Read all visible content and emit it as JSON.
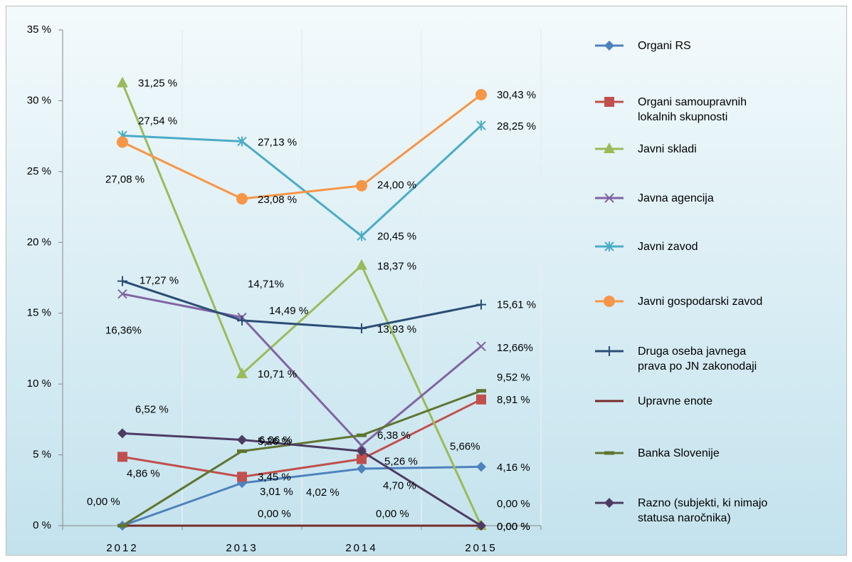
{
  "chart_data": {
    "type": "line",
    "categories": [
      "2012",
      "2013",
      "2014",
      "2015"
    ],
    "ylim": [
      0,
      35
    ],
    "yticks": [
      {
        "value": 0,
        "label": "0 %"
      },
      {
        "value": 5,
        "label": "5 %"
      },
      {
        "value": 10,
        "label": "10 %"
      },
      {
        "value": 15,
        "label": "15 %"
      },
      {
        "value": 20,
        "label": "20 %"
      },
      {
        "value": 25,
        "label": "25 %"
      },
      {
        "value": 30,
        "label": "30 %"
      },
      {
        "value": 35,
        "label": "35 %"
      }
    ],
    "grid": true,
    "legend": "right",
    "series": [
      {
        "name": "Organi RS",
        "color": "#4f81bd",
        "marker": "diamond",
        "values": [
          0,
          3.01,
          4.02,
          4.16
        ],
        "value_labels": [
          "0,00 %",
          "3,01 %",
          "4,02 %",
          "4,16 %"
        ]
      },
      {
        "name": "Organi samoupravnih lokalnih skupnosti",
        "color": "#c0504d",
        "marker": "square",
        "values": [
          4.86,
          3.45,
          4.7,
          8.91
        ],
        "value_labels": [
          "4,86 %",
          "3,45 %",
          "4,70 %",
          "8,91 %"
        ]
      },
      {
        "name": "Javni skladi",
        "color": "#9bbb59",
        "marker": "triangle",
        "values": [
          31.25,
          10.71,
          18.37,
          0
        ],
        "value_labels": [
          "31,25 %",
          "10,71 %",
          "18,37 %",
          "0,00 %"
        ]
      },
      {
        "name": "Javna agencija",
        "color": "#8064a2",
        "marker": "x",
        "values": [
          16.36,
          14.71,
          5.66,
          12.66
        ],
        "value_labels": [
          "16,36%",
          "14,71%",
          "5,66%",
          "12,66%"
        ]
      },
      {
        "name": "Javni zavod",
        "color": "#4bacc6",
        "marker": "star",
        "values": [
          27.54,
          27.13,
          20.45,
          28.25
        ],
        "value_labels": [
          "27,54 %",
          "27,13 %",
          "20,45 %",
          "28,25 %"
        ]
      },
      {
        "name": "Javni gospodarski zavod",
        "color": "#f79646",
        "marker": "circle",
        "values": [
          27.08,
          23.08,
          24.0,
          30.43
        ],
        "value_labels": [
          "27,08 %",
          "23,08 %",
          "24,00 %",
          "30,43 %"
        ]
      },
      {
        "name": "Druga oseba javnega prava po JN zakonodaji",
        "color": "#2c4d75",
        "marker": "plus",
        "values": [
          17.27,
          14.49,
          13.93,
          15.61
        ],
        "value_labels": [
          "17,27 %",
          "14,49 %",
          "13,93 %",
          "15,61 %"
        ]
      },
      {
        "name": "Upravne enote",
        "color": "#772c2a",
        "marker": "none",
        "values": [
          0,
          0,
          0,
          0
        ],
        "value_labels": [
          null,
          "0,00 %",
          "0,00 %",
          "0,00 %"
        ]
      },
      {
        "name": "Banka Slovenije",
        "color": "#5f7530",
        "marker": "dash",
        "values": [
          0,
          5.26,
          6.38,
          9.52
        ],
        "value_labels": [
          null,
          "5,26 %",
          "6,38 %",
          "9,52 %"
        ]
      },
      {
        "name": "Razno (subjekti, ki nimajo statusa naročnika)",
        "color": "#4d3b62",
        "marker": "diamond",
        "values": [
          6.52,
          6.06,
          5.26,
          0
        ],
        "value_labels": [
          "6,52 %",
          "6,06 %",
          "5,26 %",
          "0,00 %"
        ]
      }
    ]
  }
}
